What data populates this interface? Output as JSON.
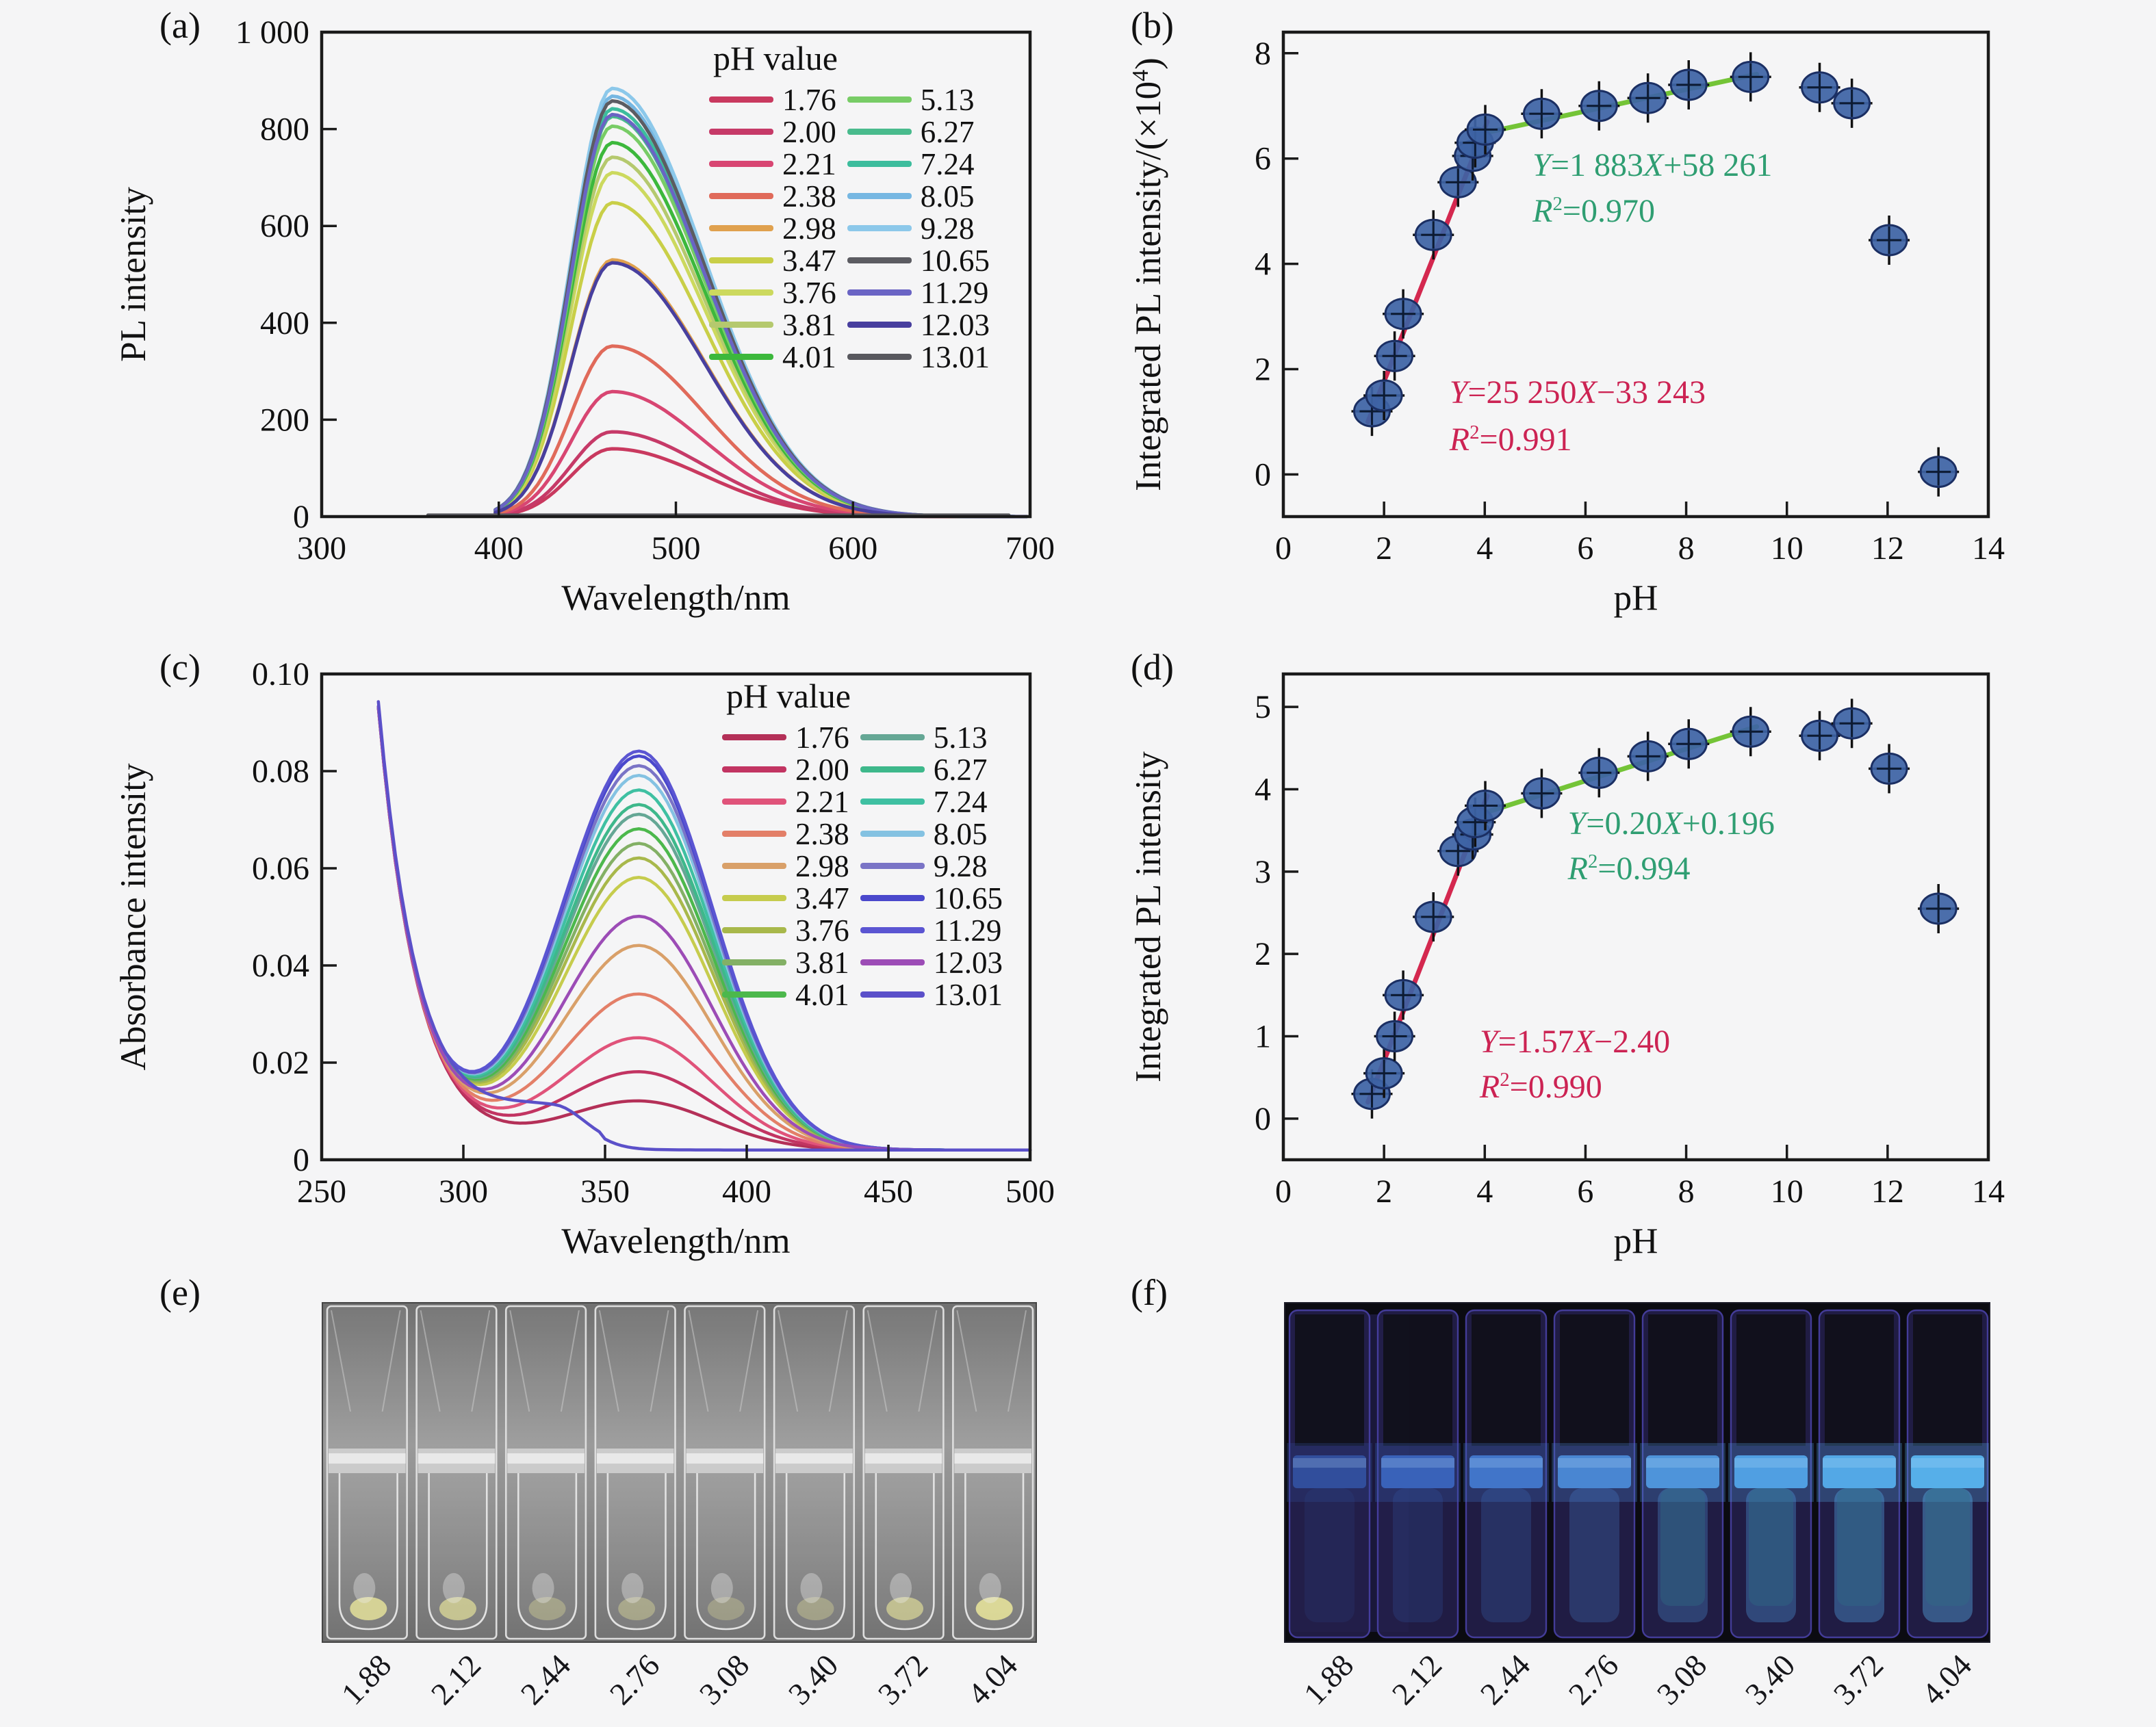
{
  "panels": {
    "a": {
      "label": "(a)"
    },
    "b": {
      "label": "(b)"
    },
    "c": {
      "label": "(c)"
    },
    "d": {
      "label": "(d)"
    },
    "e": {
      "label": "(e)"
    },
    "f": {
      "label": "(f)"
    }
  },
  "chart_data": [
    {
      "panel": "a",
      "type": "line",
      "xlabel": "Wavelength/nm",
      "ylabel": "PL intensity",
      "xlim": [
        300,
        700
      ],
      "xticks": [
        300,
        400,
        500,
        600,
        700
      ],
      "ylim": [
        0,
        1000
      ],
      "yticks": [
        0,
        200,
        400,
        600,
        800,
        1000
      ],
      "ytick_labels": [
        "0",
        "200",
        "400",
        "600",
        "800",
        "1 000"
      ],
      "legend_title": "pH value",
      "peak_center_nm": 464,
      "series": [
        {
          "ph": "1.76",
          "color": "#c9395f",
          "peak": 140
        },
        {
          "ph": "2.00",
          "color": "#c63a68",
          "peak": 175
        },
        {
          "ph": "2.21",
          "color": "#d84672",
          "peak": 258
        },
        {
          "ph": "2.38",
          "color": "#e06a5a",
          "peak": 352
        },
        {
          "ph": "2.98",
          "color": "#e0a14e",
          "peak": 530
        },
        {
          "ph": "3.47",
          "color": "#c9cf48",
          "peak": 648
        },
        {
          "ph": "3.76",
          "color": "#ccd95e",
          "peak": 710
        },
        {
          "ph": "3.81",
          "color": "#b5c96e",
          "peak": 742
        },
        {
          "ph": "4.01",
          "color": "#3cb83c",
          "peak": 772
        },
        {
          "ph": "5.13",
          "color": "#78cc66",
          "peak": 806
        },
        {
          "ph": "6.27",
          "color": "#49bb8d",
          "peak": 826
        },
        {
          "ph": "7.24",
          "color": "#3dbd9d",
          "peak": 842
        },
        {
          "ph": "8.05",
          "color": "#76b7e2",
          "peak": 868
        },
        {
          "ph": "9.28",
          "color": "#8cc8ea",
          "peak": 884
        },
        {
          "ph": "10.65",
          "color": "#5c5c62",
          "peak": 858
        },
        {
          "ph": "11.29",
          "color": "#6a64c4",
          "peak": 830
        },
        {
          "ph": "12.03",
          "color": "#483f9e",
          "peak": 524
        },
        {
          "ph": "13.01",
          "color": "#58585e",
          "peak": 3
        }
      ]
    },
    {
      "panel": "b",
      "type": "scatter",
      "xlabel": "pH",
      "ylabel": "Integrated PL intensity/(×10⁴)",
      "xlim": [
        0,
        14
      ],
      "xticks": [
        0,
        2,
        4,
        6,
        8,
        10,
        12,
        14
      ],
      "ylim": [
        -0.8,
        8.4
      ],
      "yticks": [
        0,
        2,
        4,
        6,
        8
      ],
      "marker_color": "#3d63a5",
      "points": [
        [
          1.76,
          1.2
        ],
        [
          2.0,
          1.5
        ],
        [
          2.21,
          2.25
        ],
        [
          2.38,
          3.05
        ],
        [
          2.98,
          4.55
        ],
        [
          3.47,
          5.55
        ],
        [
          3.76,
          6.05
        ],
        [
          3.81,
          6.3
        ],
        [
          4.01,
          6.55
        ],
        [
          5.13,
          6.85
        ],
        [
          6.27,
          7.0
        ],
        [
          7.24,
          7.15
        ],
        [
          8.05,
          7.4
        ],
        [
          9.28,
          7.55
        ],
        [
          10.65,
          7.35
        ],
        [
          11.29,
          7.05
        ],
        [
          12.03,
          4.45
        ],
        [
          13.01,
          0.05
        ]
      ],
      "fit_lines": [
        {
          "color": "#d4284f",
          "x1": 1.68,
          "y1": 1.0,
          "x2": 4.05,
          "y2": 6.7
        },
        {
          "color": "#74c437",
          "x1": 3.82,
          "y1": 6.45,
          "x2": 9.4,
          "y2": 7.6
        }
      ],
      "annotations": [
        {
          "text": "Y=1 883X+58 261",
          "color": "#2f9e72",
          "x": 4.95,
          "y": 5.82
        },
        {
          "text": "R²=0.970",
          "color": "#2f9e72",
          "x": 4.95,
          "y": 4.95
        },
        {
          "text": "Y=25 250X−33 243",
          "color": "#cc2353",
          "x": 3.3,
          "y": 1.5
        },
        {
          "text": "R²=0.991",
          "color": "#cc2353",
          "x": 3.3,
          "y": 0.6
        }
      ]
    },
    {
      "panel": "c",
      "type": "line",
      "xlabel": "Wavelength/nm",
      "ylabel": "Absorbance intensity",
      "xlim": [
        250,
        500
      ],
      "xticks": [
        250,
        300,
        350,
        400,
        450,
        500
      ],
      "ylim": [
        0,
        0.1
      ],
      "yticks": [
        0,
        0.02,
        0.04,
        0.06,
        0.08,
        0.1
      ],
      "ytick_labels": [
        "0",
        "0.02",
        "0.04",
        "0.06",
        "0.08",
        "0.10"
      ],
      "legend_title": "pH value",
      "peak_center_nm": 362,
      "series": [
        {
          "ph": "1.76",
          "color": "#b43058",
          "peak": 0.01
        },
        {
          "ph": "2.00",
          "color": "#c23462",
          "peak": 0.016
        },
        {
          "ph": "2.21",
          "color": "#e0537a",
          "peak": 0.023
        },
        {
          "ph": "2.38",
          "color": "#e37f68",
          "peak": 0.032
        },
        {
          "ph": "2.98",
          "color": "#d9a069",
          "peak": 0.042
        },
        {
          "ph": "3.47",
          "color": "#c6cc4d",
          "peak": 0.056
        },
        {
          "ph": "3.76",
          "color": "#a8b84b",
          "peak": 0.06
        },
        {
          "ph": "3.81",
          "color": "#83b065",
          "peak": 0.063
        },
        {
          "ph": "4.01",
          "color": "#4cb84c",
          "peak": 0.066
        },
        {
          "ph": "5.13",
          "color": "#65a795",
          "peak": 0.069
        },
        {
          "ph": "6.27",
          "color": "#3eb88b",
          "peak": 0.071
        },
        {
          "ph": "7.24",
          "color": "#3fc0a2",
          "peak": 0.074
        },
        {
          "ph": "8.05",
          "color": "#84c2e2",
          "peak": 0.077
        },
        {
          "ph": "9.28",
          "color": "#7a74c6",
          "peak": 0.079
        },
        {
          "ph": "10.65",
          "color": "#4a48cc",
          "peak": 0.081
        },
        {
          "ph": "11.29",
          "color": "#5b55d2",
          "peak": 0.082
        },
        {
          "ph": "12.03",
          "color": "#9c4cb6",
          "peak": 0.048
        },
        {
          "ph": "13.01",
          "color": "#5b50c9",
          "peak": 0.009,
          "shape": "step"
        }
      ]
    },
    {
      "panel": "d",
      "type": "scatter",
      "xlabel": "pH",
      "ylabel": "Integrated PL intensity",
      "xlim": [
        0,
        14
      ],
      "xticks": [
        0,
        2,
        4,
        6,
        8,
        10,
        12,
        14
      ],
      "ylim": [
        -0.5,
        5.4
      ],
      "yticks": [
        0,
        1,
        2,
        3,
        4,
        5
      ],
      "marker_color": "#3d63a5",
      "points": [
        [
          1.76,
          0.3
        ],
        [
          2.0,
          0.55
        ],
        [
          2.21,
          1.0
        ],
        [
          2.38,
          1.5
        ],
        [
          2.98,
          2.45
        ],
        [
          3.47,
          3.25
        ],
        [
          3.76,
          3.45
        ],
        [
          3.81,
          3.6
        ],
        [
          4.01,
          3.8
        ],
        [
          5.13,
          3.95
        ],
        [
          6.27,
          4.2
        ],
        [
          7.24,
          4.4
        ],
        [
          8.05,
          4.55
        ],
        [
          9.28,
          4.7
        ],
        [
          10.65,
          4.65
        ],
        [
          11.29,
          4.8
        ],
        [
          12.03,
          4.25
        ],
        [
          13.01,
          2.55
        ]
      ],
      "fit_lines": [
        {
          "color": "#d4284f",
          "x1": 1.68,
          "y1": 0.2,
          "x2": 4.05,
          "y2": 3.92
        },
        {
          "color": "#74c437",
          "x1": 3.82,
          "y1": 3.68,
          "x2": 9.4,
          "y2": 4.76
        }
      ],
      "annotations": [
        {
          "text": "Y=0.20X+0.196",
          "color": "#2f9e72",
          "x": 5.65,
          "y": 3.55
        },
        {
          "text": "R²=0.994",
          "color": "#2f9e72",
          "x": 5.65,
          "y": 3.0
        },
        {
          "text": "Y=1.57X−2.40",
          "color": "#cc2353",
          "x": 3.9,
          "y": 0.9
        },
        {
          "text": "R²=0.990",
          "color": "#cc2353",
          "x": 3.9,
          "y": 0.35
        }
      ]
    }
  ],
  "photos": {
    "e": {
      "labels": [
        "1.88",
        "2.12",
        "2.44",
        "2.76",
        "3.08",
        "3.40",
        "3.72",
        "4.04"
      ],
      "cuvette_count": 8,
      "background": "#858585",
      "residue_color": "#e4e19a"
    },
    "f": {
      "labels": [
        "1.88",
        "2.12",
        "2.44",
        "2.76",
        "3.08",
        "3.40",
        "3.72",
        "4.04"
      ],
      "cuvette_count": 8,
      "background": "#0b0b11",
      "outline_color": "#4b43ab",
      "liquid_colors": [
        "#32509e",
        "#3a64bc",
        "#4278cc",
        "#4a88d6",
        "#4f97de",
        "#52a2e6",
        "#55abe9",
        "#58b3ec"
      ]
    }
  }
}
